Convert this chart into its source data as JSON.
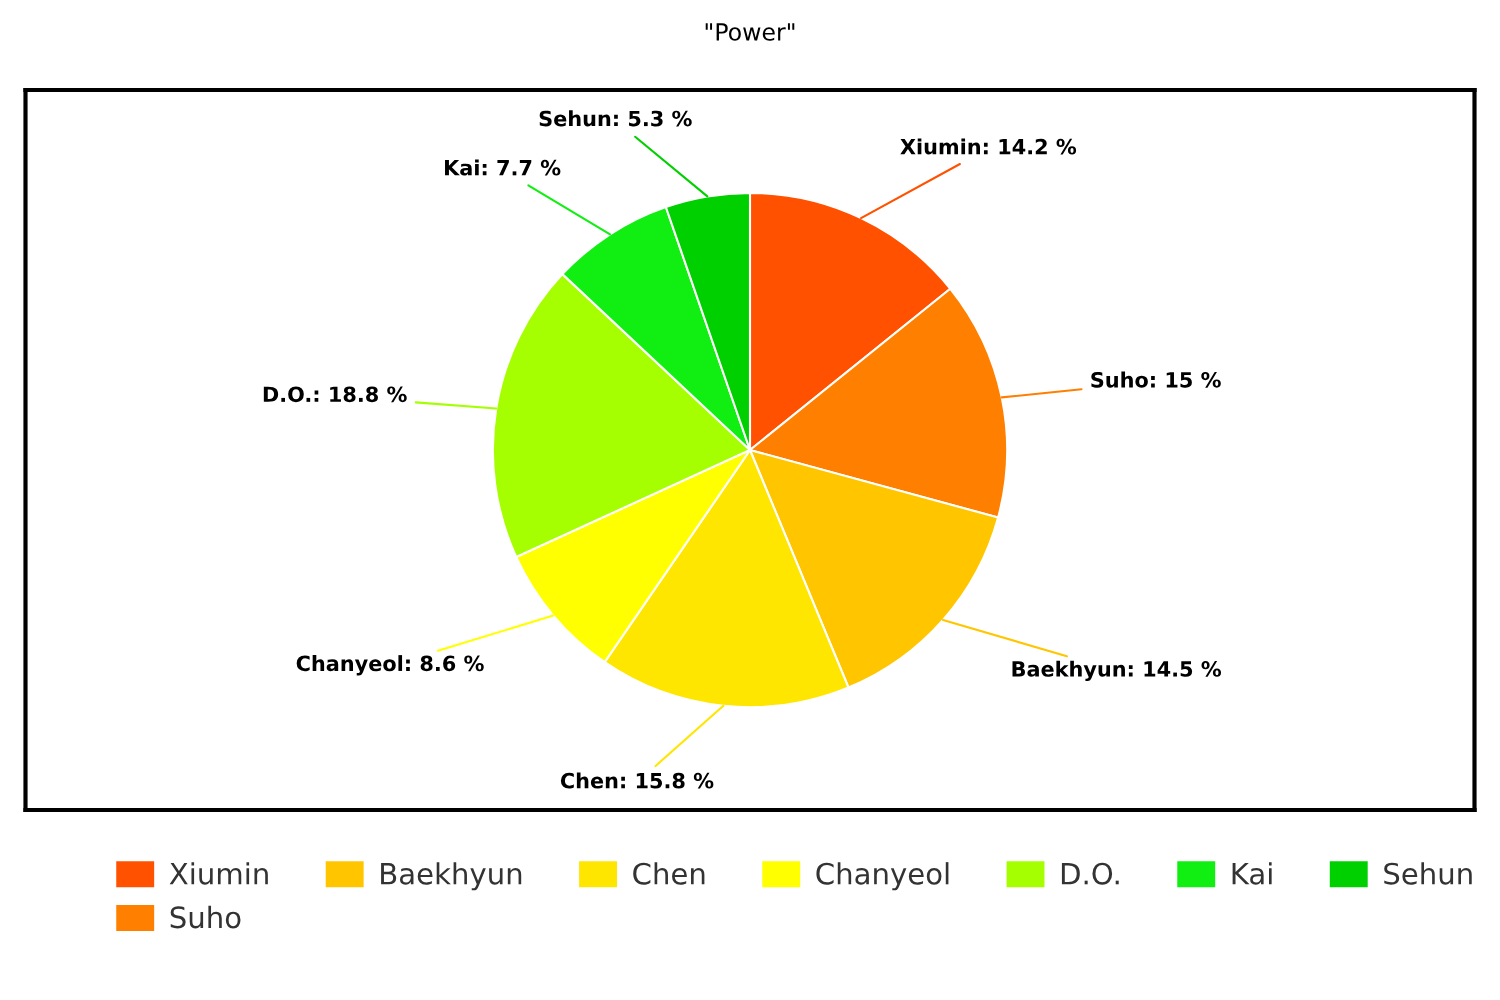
{
  "chart_data": {
    "type": "pie",
    "title": "\"Power\"",
    "categories": [
      "Xiumin",
      "Suho",
      "Baekhyun",
      "Chen",
      "Chanyeol",
      "D.O.",
      "Kai",
      "Sehun"
    ],
    "values": [
      14.2,
      15,
      14.5,
      15.8,
      8.6,
      18.8,
      7.7,
      5.3
    ],
    "value_labels": [
      "Xiumin: 14.2 %",
      "Suho: 15 %",
      "Baekhyun: 14.5 %",
      "Chen: 15.8 %",
      "Chanyeol: 8.6 %",
      "D.O.: 18.8 %",
      "Kai: 7.7 %",
      "Sehun: 5.3 %"
    ],
    "colors": [
      "#ff5100",
      "#ff7f00",
      "#ffc600",
      "#ffe600",
      "#ffff00",
      "#a6ff00",
      "#11ee11",
      "#00d000"
    ],
    "legend": "bottom"
  }
}
